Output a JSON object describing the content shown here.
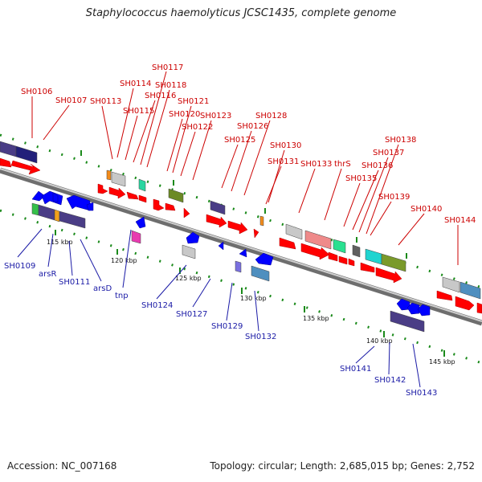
{
  "title": "Staphylococcus haemolyticus JCSC1435, complete genome",
  "footer": {
    "accession": "Accession: NC_007168",
    "summary": "Topology: circular; Length: 2,685,015 bp; Genes: 2,752"
  },
  "colors": {
    "backbone": "#9a9a9a",
    "forward_gene": "#ff0000",
    "reverse_gene": "#0000ff",
    "forward_label": "#cc0000",
    "reverse_label": "#1a1aa6",
    "tick": "#1a8a1a"
  },
  "ticks": [
    "115 kbp",
    "120 kbp",
    "125 kbp",
    "130 kbp",
    "135 kbp",
    "140 kbp",
    "145 kbp"
  ],
  "forward_labels": [
    "SH0106",
    "SH0107",
    "SH0113",
    "SH0114",
    "SH0115",
    "SH0116",
    "SH0117",
    "SH0118",
    "SH0120",
    "SH0121",
    "SH0122",
    "SH0123",
    "SH0125",
    "SH0126",
    "SH0128",
    "SH0130",
    "SH0131",
    "SH0133",
    "thrS",
    "SH0135",
    "SH0136",
    "SH0137",
    "SH0138",
    "SH0139",
    "SH0140",
    "SH0144"
  ],
  "reverse_labels": [
    "SH0109",
    "arsR",
    "SH0111",
    "arsD",
    "tnp",
    "SH0124",
    "SH0127",
    "SH0129",
    "SH0132",
    "SH0141",
    "SH0142",
    "SH0143"
  ]
}
